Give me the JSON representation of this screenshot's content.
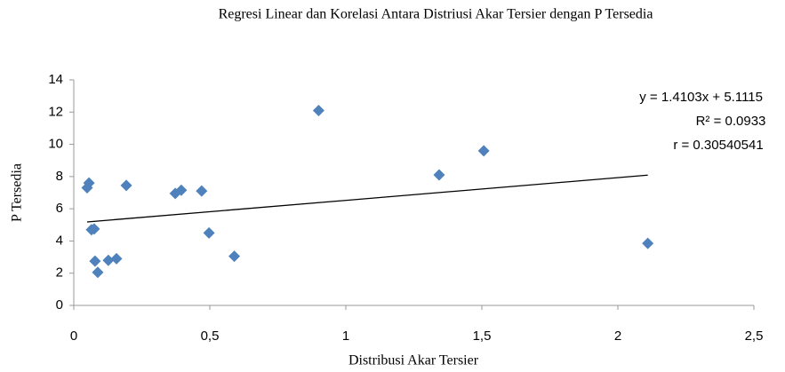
{
  "chart_data": {
    "type": "scatter",
    "title": "Regresi Linear dan Korelasi Antara Distriusi Akar Tersier dengan P Tersedia",
    "x_label": "Distribusi Akar Tersier",
    "y_label": "P Tersedia",
    "annotations": [
      "y = 1.4103x + 5.1115",
      "R² = 0.0933",
      "r = 0.30540541"
    ],
    "trendline": {
      "slope": 1.4103,
      "intercept": 5.1115,
      "color": "#000000"
    },
    "series": [
      {
        "color": "#4f81bd",
        "x": [
          0.049,
          0.056,
          0.065,
          0.075,
          0.078,
          0.088,
          0.127,
          0.157,
          0.193,
          0.373,
          0.395,
          0.47,
          0.497,
          0.59,
          0.9,
          1.343,
          1.507,
          2.11
        ],
        "values": [
          7.3,
          7.6,
          4.7,
          4.75,
          2.75,
          2.05,
          2.8,
          2.9,
          7.45,
          6.95,
          7.15,
          7.1,
          4.5,
          3.05,
          12.1,
          8.1,
          9.6,
          3.85
        ]
      }
    ],
    "xlim": [
      0,
      2.5
    ],
    "xticks": [
      0,
      {
        "value": 0.5,
        "label": "0,5"
      },
      1,
      {
        "value": 1.5,
        "label": "1,5"
      },
      2,
      {
        "value": 2.5,
        "label": "2,5"
      }
    ],
    "ylim": [
      0,
      14
    ],
    "yticks": [
      0,
      2,
      4,
      6,
      8,
      10,
      12,
      14
    ],
    "grid": false
  }
}
